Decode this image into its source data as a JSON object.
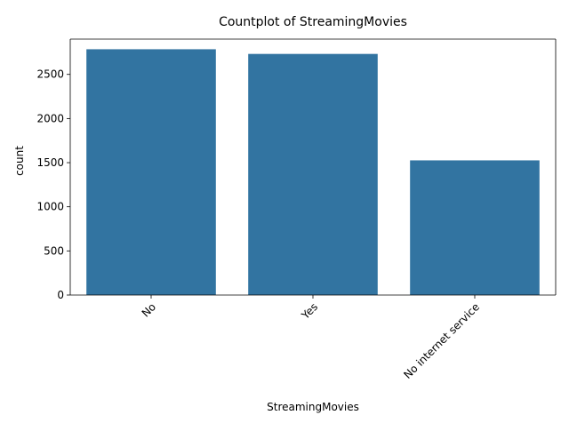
{
  "chart_data": {
    "type": "bar",
    "title": "Countplot of StreamingMovies",
    "xlabel": "StreamingMovies",
    "ylabel": "count",
    "categories": [
      "No",
      "Yes",
      "No internet service"
    ],
    "values": [
      2785,
      2732,
      1526
    ],
    "ylim": [
      0,
      2900
    ],
    "yticks": [
      0,
      500,
      1000,
      1500,
      2000,
      2500
    ],
    "grid": false,
    "legend": "none",
    "x_tick_rotation": 45,
    "bar_color": "#3274a1"
  }
}
